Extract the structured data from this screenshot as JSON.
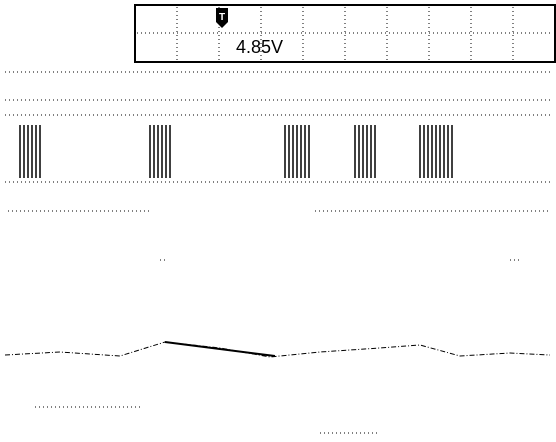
{
  "screen": {
    "trigger_marker": "T",
    "readout": "4.85V"
  }
}
